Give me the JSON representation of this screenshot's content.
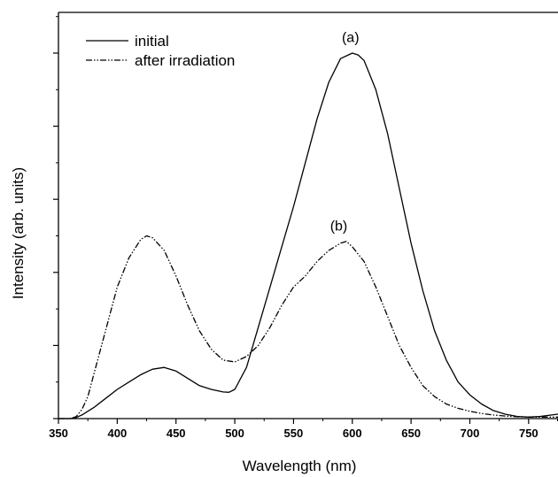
{
  "chart_data": {
    "type": "line",
    "title": "",
    "xlabel": "Wavelength (nm)",
    "ylabel": "Intensity (arb. units)",
    "xlim": [
      350,
      775
    ],
    "ylim": [
      0,
      1.0
    ],
    "x_ticks": [
      "350",
      "400",
      "450",
      "500",
      "550",
      "600",
      "650",
      "700",
      "750"
    ],
    "y_tick_labels_shown": false,
    "grid": false,
    "legend_position": "top-left",
    "series": [
      {
        "name": "initial",
        "style": "solid",
        "color": "#000000",
        "x": [
          350,
          360,
          365,
          370,
          380,
          390,
          400,
          410,
          420,
          430,
          440,
          450,
          460,
          470,
          480,
          490,
          495,
          500,
          510,
          520,
          530,
          540,
          550,
          560,
          570,
          580,
          590,
          600,
          605,
          610,
          620,
          630,
          640,
          650,
          660,
          670,
          680,
          690,
          700,
          710,
          720,
          730,
          740,
          750,
          760,
          775
        ],
        "y": [
          0,
          0,
          0.003,
          0.01,
          0.03,
          0.055,
          0.08,
          0.1,
          0.12,
          0.135,
          0.14,
          0.13,
          0.11,
          0.09,
          0.08,
          0.073,
          0.072,
          0.08,
          0.14,
          0.25,
          0.36,
          0.47,
          0.58,
          0.7,
          0.82,
          0.92,
          0.985,
          1.0,
          0.995,
          0.98,
          0.9,
          0.78,
          0.63,
          0.48,
          0.35,
          0.24,
          0.16,
          0.1,
          0.065,
          0.04,
          0.022,
          0.012,
          0.006,
          0.004,
          0.006,
          0.012
        ]
      },
      {
        "name": "after irradiation",
        "style": "dash-dot-dot",
        "color": "#000000",
        "x": [
          350,
          360,
          365,
          370,
          375,
          380,
          390,
          400,
          410,
          420,
          425,
          430,
          440,
          450,
          460,
          470,
          480,
          490,
          500,
          510,
          520,
          530,
          540,
          550,
          560,
          570,
          580,
          590,
          595,
          600,
          610,
          620,
          630,
          640,
          650,
          660,
          670,
          680,
          690,
          700,
          710,
          720,
          730,
          740,
          750,
          760,
          775
        ],
        "y": [
          0,
          0,
          0.005,
          0.025,
          0.06,
          0.12,
          0.24,
          0.36,
          0.44,
          0.49,
          0.5,
          0.495,
          0.46,
          0.39,
          0.31,
          0.24,
          0.19,
          0.16,
          0.155,
          0.17,
          0.2,
          0.25,
          0.31,
          0.36,
          0.39,
          0.43,
          0.46,
          0.48,
          0.485,
          0.47,
          0.43,
          0.36,
          0.28,
          0.2,
          0.14,
          0.09,
          0.06,
          0.04,
          0.028,
          0.02,
          0.014,
          0.01,
          0.007,
          0.005,
          0.004,
          0.004,
          0.004
        ]
      }
    ],
    "annotations": [
      {
        "text": "(a)",
        "x": 600,
        "y": 1.02
      },
      {
        "text": "(b)",
        "x": 590,
        "y": 0.505
      }
    ]
  }
}
